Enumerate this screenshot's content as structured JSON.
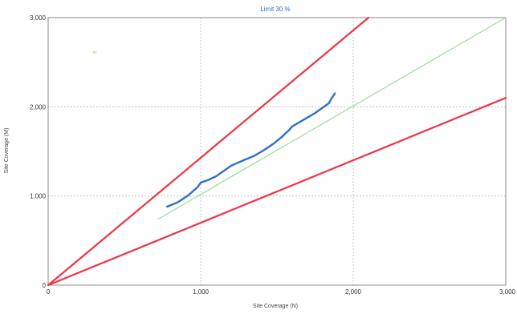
{
  "chart_data": {
    "type": "line",
    "title": "Limit 30 %",
    "xlabel": "Site Coverage (N)",
    "ylabel": "Site Coverage (M)",
    "xlim": [
      0,
      3000
    ],
    "ylim": [
      0,
      3000
    ],
    "xticks": [
      "0",
      "1,000",
      "2,000",
      "3,000"
    ],
    "yticks": [
      "0",
      "1,000",
      "2,000",
      "3,000"
    ],
    "grid": true,
    "grid_style": "dashed",
    "series": [
      {
        "color": "#ee3344",
        "style": "solid",
        "x": [
          0,
          2100
        ],
        "y": [
          0,
          3000
        ]
      },
      {
        "color": "#ee3344",
        "style": "solid",
        "x": [
          0,
          3000
        ],
        "y": [
          0,
          2100
        ]
      },
      {
        "color": "#99dd99",
        "style": "solid",
        "x": [
          720,
          3000
        ],
        "y": [
          740,
          3000
        ]
      },
      {
        "color": "#2e6fd0",
        "style": "solid",
        "x": [
          780,
          850,
          920,
          980,
          1000,
          1050,
          1100,
          1150,
          1200,
          1280,
          1350,
          1420,
          1480,
          1530,
          1580,
          1600,
          1650,
          1700,
          1750,
          1800,
          1840,
          1860,
          1880
        ],
        "y": [
          880,
          930,
          1010,
          1100,
          1150,
          1180,
          1220,
          1280,
          1340,
          1400,
          1450,
          1520,
          1590,
          1660,
          1740,
          1780,
          1830,
          1880,
          1930,
          1990,
          2040,
          2100,
          2150
        ]
      }
    ],
    "annotations": [
      {
        "text": "≈",
        "x": 290,
        "y": 2590,
        "color": "#b8b833"
      }
    ]
  }
}
